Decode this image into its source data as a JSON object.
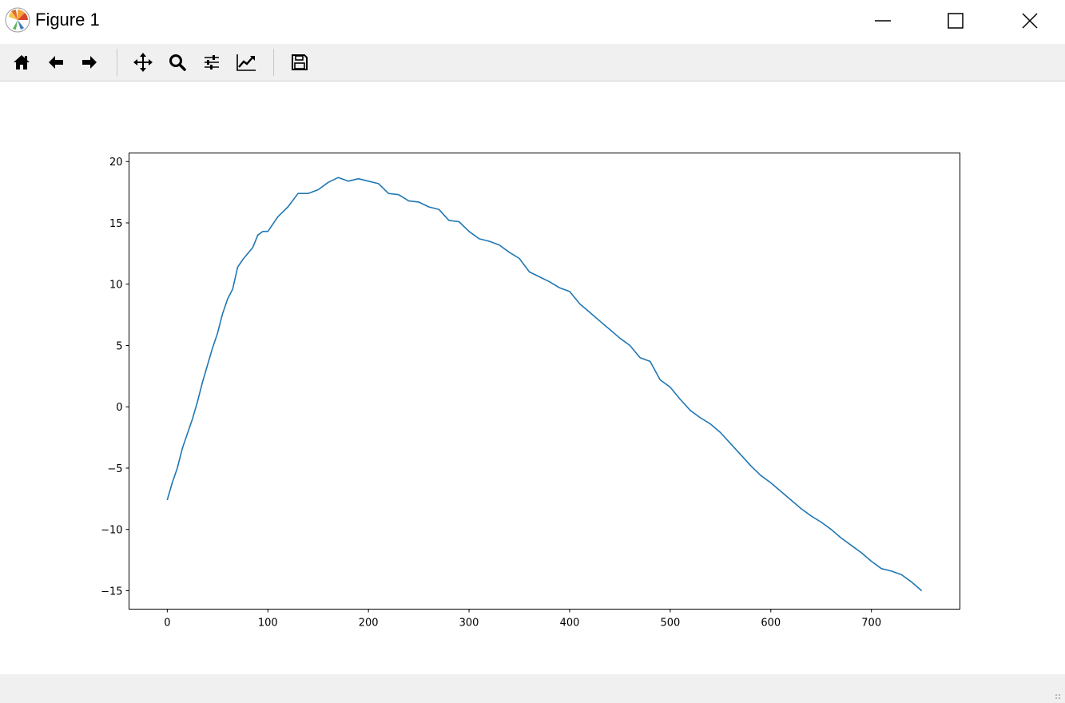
{
  "window": {
    "title": "Figure 1",
    "app_icon": "matplotlib-logo-icon",
    "controls": [
      "minimize-icon",
      "maximize-icon",
      "close-icon"
    ]
  },
  "toolbar": {
    "items": [
      {
        "name": "home-button",
        "icon": "home-icon"
      },
      {
        "name": "back-button",
        "icon": "arrow-left-icon"
      },
      {
        "name": "forward-button",
        "icon": "arrow-right-icon"
      },
      {
        "name": "pan-button",
        "icon": "move-icon"
      },
      {
        "name": "zoom-button",
        "icon": "magnifier-icon"
      },
      {
        "name": "configure-subplots-button",
        "icon": "sliders-icon"
      },
      {
        "name": "edit-axes-button",
        "icon": "line-chart-icon"
      },
      {
        "name": "save-button",
        "icon": "floppy-disk-icon"
      }
    ]
  },
  "chart_data": {
    "type": "line",
    "title": "",
    "xlabel": "",
    "ylabel": "",
    "xlim": [
      -38,
      788
    ],
    "ylim": [
      -16.5,
      20.7
    ],
    "xticks": [
      0,
      100,
      200,
      300,
      400,
      500,
      600,
      700
    ],
    "yticks": [
      -15,
      -10,
      -5,
      0,
      5,
      10,
      15,
      20
    ],
    "xtick_labels": [
      "0",
      "100",
      "200",
      "300",
      "400",
      "500",
      "600",
      "700"
    ],
    "ytick_labels": [
      "−15",
      "−10",
      "−5",
      "0",
      "5",
      "10",
      "15",
      "20"
    ],
    "grid": false,
    "legend": "none",
    "series": [
      {
        "color": "#1f77b4",
        "x": [
          0,
          5,
          10,
          15,
          20,
          25,
          30,
          35,
          40,
          45,
          50,
          55,
          60,
          65,
          70,
          75,
          80,
          85,
          90,
          95,
          100,
          110,
          120,
          130,
          140,
          150,
          160,
          170,
          180,
          190,
          200,
          210,
          220,
          230,
          240,
          250,
          260,
          270,
          280,
          290,
          300,
          310,
          320,
          330,
          340,
          350,
          360,
          370,
          380,
          390,
          400,
          410,
          420,
          430,
          440,
          450,
          460,
          470,
          480,
          490,
          500,
          510,
          520,
          530,
          540,
          550,
          560,
          570,
          580,
          590,
          600,
          610,
          620,
          630,
          640,
          650,
          660,
          670,
          680,
          690,
          700,
          710,
          720,
          730,
          740,
          750
        ],
        "y": [
          -7.6,
          -6.2,
          -5.0,
          -3.4,
          -2.2,
          -1.0,
          0.4,
          2.0,
          3.4,
          4.8,
          6.0,
          7.6,
          8.8,
          9.6,
          11.4,
          12.0,
          12.5,
          13.0,
          14.0,
          14.3,
          14.3,
          15.5,
          16.3,
          17.4,
          17.4,
          17.7,
          18.3,
          18.7,
          18.4,
          18.6,
          18.4,
          18.2,
          17.4,
          17.3,
          16.8,
          16.7,
          16.3,
          16.1,
          15.2,
          15.1,
          14.3,
          13.7,
          13.5,
          13.2,
          12.6,
          12.1,
          11.0,
          10.6,
          10.2,
          9.7,
          9.4,
          8.4,
          7.7,
          7.0,
          6.3,
          5.6,
          5.0,
          4.0,
          3.7,
          2.2,
          1.6,
          0.6,
          -0.3,
          -0.9,
          -1.4,
          -2.1,
          -3.0,
          -3.9,
          -4.8,
          -5.6,
          -6.2,
          -6.9,
          -7.6,
          -8.3,
          -8.9,
          -9.4,
          -10.0,
          -10.7,
          -11.3,
          -11.9,
          -12.6,
          -13.2,
          -13.4,
          -13.7,
          -14.3,
          -15.0
        ]
      }
    ]
  }
}
